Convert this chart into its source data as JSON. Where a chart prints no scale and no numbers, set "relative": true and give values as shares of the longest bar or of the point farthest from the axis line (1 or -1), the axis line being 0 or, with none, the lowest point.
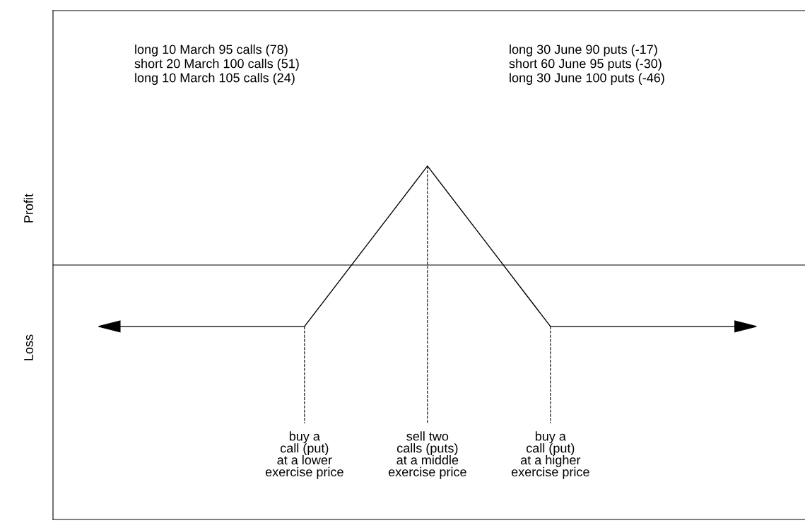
{
  "chart_data": {
    "type": "line",
    "relative": true,
    "categories": [
      null,
      null,
      null,
      null,
      null,
      null,
      null,
      null,
      null,
      null,
      null
    ],
    "series": [
      {
        "color": "#000000",
        "values": [
          -0.62,
          -0.62,
          -0.62,
          -0.62,
          0.19,
          1,
          0.19,
          -0.62,
          -0.62,
          -0.62,
          -0.62
        ]
      }
    ],
    "annotations": [
      "long 10 March 95 calls (78)\nshort 20 March 100 calls (51)\nlong 10 March 105 calls (24)",
      "long 30 June 90 puts (-17)\nshort 60 June 95 puts (-30)\nlong 30 June 100 puts (-46)",
      "Profit",
      "Loss",
      "buy a\ncall (put)\nat a lower\nexercise price",
      "sell two\ncalls (puts)\nat a middle\nexercise price",
      "buy a\ncall (put)\nat a higher\nexercise price"
    ],
    "marker": "none",
    "line_style": "solid"
  }
}
